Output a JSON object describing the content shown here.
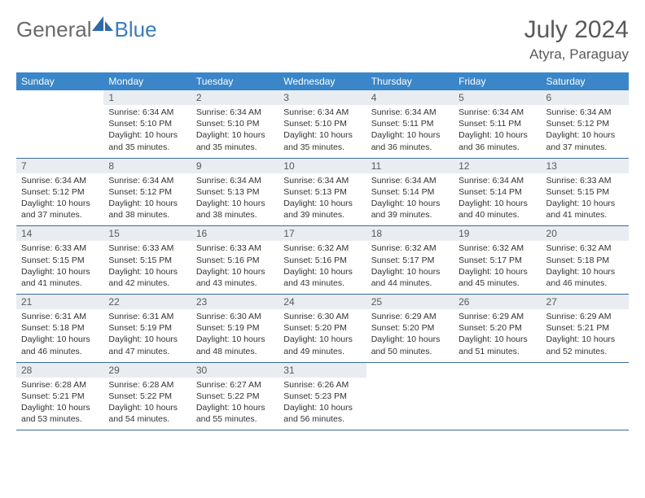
{
  "logo": {
    "text1": "General",
    "text2": "Blue"
  },
  "title": "July 2024",
  "location": "Atyra, Paraguay",
  "dayHeaders": [
    "Sunday",
    "Monday",
    "Tuesday",
    "Wednesday",
    "Thursday",
    "Friday",
    "Saturday"
  ],
  "colors": {
    "headerBg": "#3a86c8",
    "dayNumBg": "#e9edf1",
    "rowBorder": "#3a6a9a",
    "textGray": "#595959",
    "logoBlue": "#3a7cbf"
  },
  "weeks": [
    [
      {
        "num": "",
        "lines": []
      },
      {
        "num": "1",
        "lines": [
          "Sunrise: 6:34 AM",
          "Sunset: 5:10 PM",
          "Daylight: 10 hours",
          "and 35 minutes."
        ]
      },
      {
        "num": "2",
        "lines": [
          "Sunrise: 6:34 AM",
          "Sunset: 5:10 PM",
          "Daylight: 10 hours",
          "and 35 minutes."
        ]
      },
      {
        "num": "3",
        "lines": [
          "Sunrise: 6:34 AM",
          "Sunset: 5:10 PM",
          "Daylight: 10 hours",
          "and 35 minutes."
        ]
      },
      {
        "num": "4",
        "lines": [
          "Sunrise: 6:34 AM",
          "Sunset: 5:11 PM",
          "Daylight: 10 hours",
          "and 36 minutes."
        ]
      },
      {
        "num": "5",
        "lines": [
          "Sunrise: 6:34 AM",
          "Sunset: 5:11 PM",
          "Daylight: 10 hours",
          "and 36 minutes."
        ]
      },
      {
        "num": "6",
        "lines": [
          "Sunrise: 6:34 AM",
          "Sunset: 5:12 PM",
          "Daylight: 10 hours",
          "and 37 minutes."
        ]
      }
    ],
    [
      {
        "num": "7",
        "lines": [
          "Sunrise: 6:34 AM",
          "Sunset: 5:12 PM",
          "Daylight: 10 hours",
          "and 37 minutes."
        ]
      },
      {
        "num": "8",
        "lines": [
          "Sunrise: 6:34 AM",
          "Sunset: 5:12 PM",
          "Daylight: 10 hours",
          "and 38 minutes."
        ]
      },
      {
        "num": "9",
        "lines": [
          "Sunrise: 6:34 AM",
          "Sunset: 5:13 PM",
          "Daylight: 10 hours",
          "and 38 minutes."
        ]
      },
      {
        "num": "10",
        "lines": [
          "Sunrise: 6:34 AM",
          "Sunset: 5:13 PM",
          "Daylight: 10 hours",
          "and 39 minutes."
        ]
      },
      {
        "num": "11",
        "lines": [
          "Sunrise: 6:34 AM",
          "Sunset: 5:14 PM",
          "Daylight: 10 hours",
          "and 39 minutes."
        ]
      },
      {
        "num": "12",
        "lines": [
          "Sunrise: 6:34 AM",
          "Sunset: 5:14 PM",
          "Daylight: 10 hours",
          "and 40 minutes."
        ]
      },
      {
        "num": "13",
        "lines": [
          "Sunrise: 6:33 AM",
          "Sunset: 5:15 PM",
          "Daylight: 10 hours",
          "and 41 minutes."
        ]
      }
    ],
    [
      {
        "num": "14",
        "lines": [
          "Sunrise: 6:33 AM",
          "Sunset: 5:15 PM",
          "Daylight: 10 hours",
          "and 41 minutes."
        ]
      },
      {
        "num": "15",
        "lines": [
          "Sunrise: 6:33 AM",
          "Sunset: 5:15 PM",
          "Daylight: 10 hours",
          "and 42 minutes."
        ]
      },
      {
        "num": "16",
        "lines": [
          "Sunrise: 6:33 AM",
          "Sunset: 5:16 PM",
          "Daylight: 10 hours",
          "and 43 minutes."
        ]
      },
      {
        "num": "17",
        "lines": [
          "Sunrise: 6:32 AM",
          "Sunset: 5:16 PM",
          "Daylight: 10 hours",
          "and 43 minutes."
        ]
      },
      {
        "num": "18",
        "lines": [
          "Sunrise: 6:32 AM",
          "Sunset: 5:17 PM",
          "Daylight: 10 hours",
          "and 44 minutes."
        ]
      },
      {
        "num": "19",
        "lines": [
          "Sunrise: 6:32 AM",
          "Sunset: 5:17 PM",
          "Daylight: 10 hours",
          "and 45 minutes."
        ]
      },
      {
        "num": "20",
        "lines": [
          "Sunrise: 6:32 AM",
          "Sunset: 5:18 PM",
          "Daylight: 10 hours",
          "and 46 minutes."
        ]
      }
    ],
    [
      {
        "num": "21",
        "lines": [
          "Sunrise: 6:31 AM",
          "Sunset: 5:18 PM",
          "Daylight: 10 hours",
          "and 46 minutes."
        ]
      },
      {
        "num": "22",
        "lines": [
          "Sunrise: 6:31 AM",
          "Sunset: 5:19 PM",
          "Daylight: 10 hours",
          "and 47 minutes."
        ]
      },
      {
        "num": "23",
        "lines": [
          "Sunrise: 6:30 AM",
          "Sunset: 5:19 PM",
          "Daylight: 10 hours",
          "and 48 minutes."
        ]
      },
      {
        "num": "24",
        "lines": [
          "Sunrise: 6:30 AM",
          "Sunset: 5:20 PM",
          "Daylight: 10 hours",
          "and 49 minutes."
        ]
      },
      {
        "num": "25",
        "lines": [
          "Sunrise: 6:29 AM",
          "Sunset: 5:20 PM",
          "Daylight: 10 hours",
          "and 50 minutes."
        ]
      },
      {
        "num": "26",
        "lines": [
          "Sunrise: 6:29 AM",
          "Sunset: 5:20 PM",
          "Daylight: 10 hours",
          "and 51 minutes."
        ]
      },
      {
        "num": "27",
        "lines": [
          "Sunrise: 6:29 AM",
          "Sunset: 5:21 PM",
          "Daylight: 10 hours",
          "and 52 minutes."
        ]
      }
    ],
    [
      {
        "num": "28",
        "lines": [
          "Sunrise: 6:28 AM",
          "Sunset: 5:21 PM",
          "Daylight: 10 hours",
          "and 53 minutes."
        ]
      },
      {
        "num": "29",
        "lines": [
          "Sunrise: 6:28 AM",
          "Sunset: 5:22 PM",
          "Daylight: 10 hours",
          "and 54 minutes."
        ]
      },
      {
        "num": "30",
        "lines": [
          "Sunrise: 6:27 AM",
          "Sunset: 5:22 PM",
          "Daylight: 10 hours",
          "and 55 minutes."
        ]
      },
      {
        "num": "31",
        "lines": [
          "Sunrise: 6:26 AM",
          "Sunset: 5:23 PM",
          "Daylight: 10 hours",
          "and 56 minutes."
        ]
      },
      {
        "num": "",
        "lines": []
      },
      {
        "num": "",
        "lines": []
      },
      {
        "num": "",
        "lines": []
      }
    ]
  ]
}
